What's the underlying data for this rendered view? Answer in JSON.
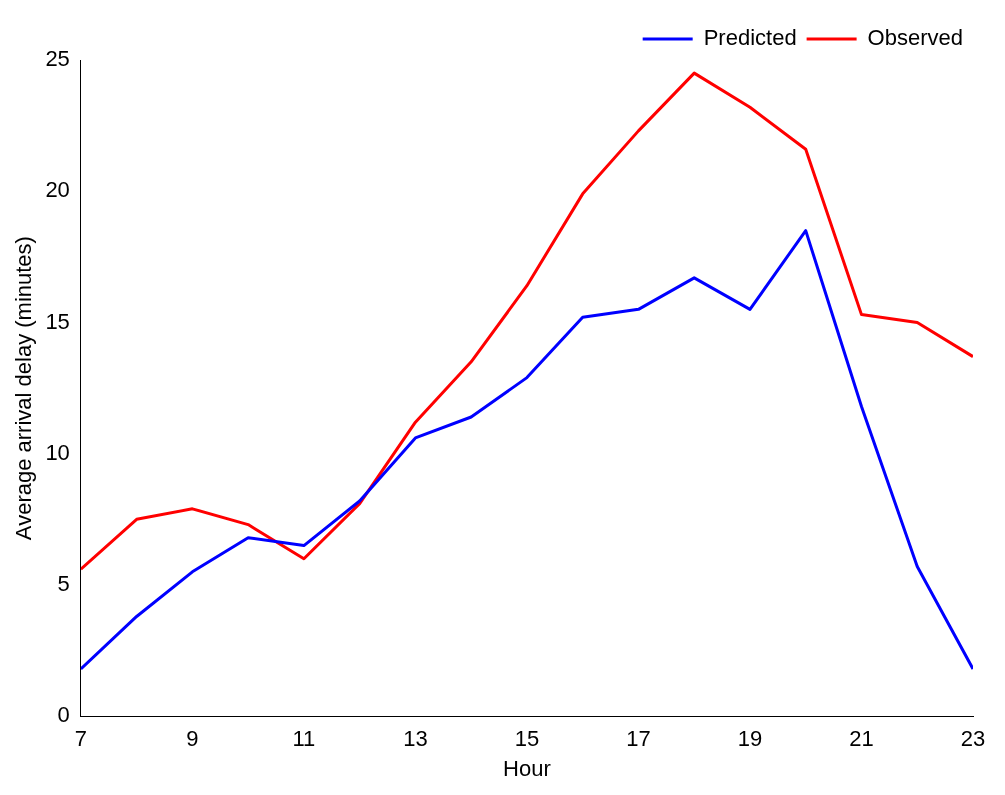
{
  "chart_data": {
    "type": "line",
    "xlabel": "Hour",
    "ylabel": "Average arrival delay (minutes)",
    "x": [
      7,
      8,
      9,
      10,
      11,
      12,
      13,
      14,
      15,
      16,
      17,
      18,
      19,
      20,
      21,
      22,
      23
    ],
    "series": [
      {
        "name": "Predicted",
        "color": "#0000ff",
        "values": [
          1.8,
          3.8,
          5.5,
          6.8,
          6.5,
          8.2,
          10.6,
          11.4,
          12.9,
          15.2,
          15.5,
          16.7,
          15.5,
          18.5,
          11.8,
          5.7,
          1.8
        ]
      },
      {
        "name": "Observed",
        "color": "#ff0000",
        "values": [
          5.6,
          7.5,
          7.9,
          7.3,
          6.0,
          8.1,
          11.2,
          13.5,
          16.4,
          19.9,
          22.3,
          24.5,
          23.2,
          21.6,
          15.3,
          15.0,
          13.7
        ]
      }
    ],
    "xlim": [
      7,
      23
    ],
    "xticks": [
      7,
      9,
      11,
      13,
      15,
      17,
      19,
      21,
      23
    ],
    "ylim": [
      0,
      25
    ],
    "yticks": [
      0,
      5,
      10,
      15,
      20,
      25
    ],
    "grid": false,
    "legend": "top right",
    "marker": "none",
    "line_style": "solid"
  }
}
